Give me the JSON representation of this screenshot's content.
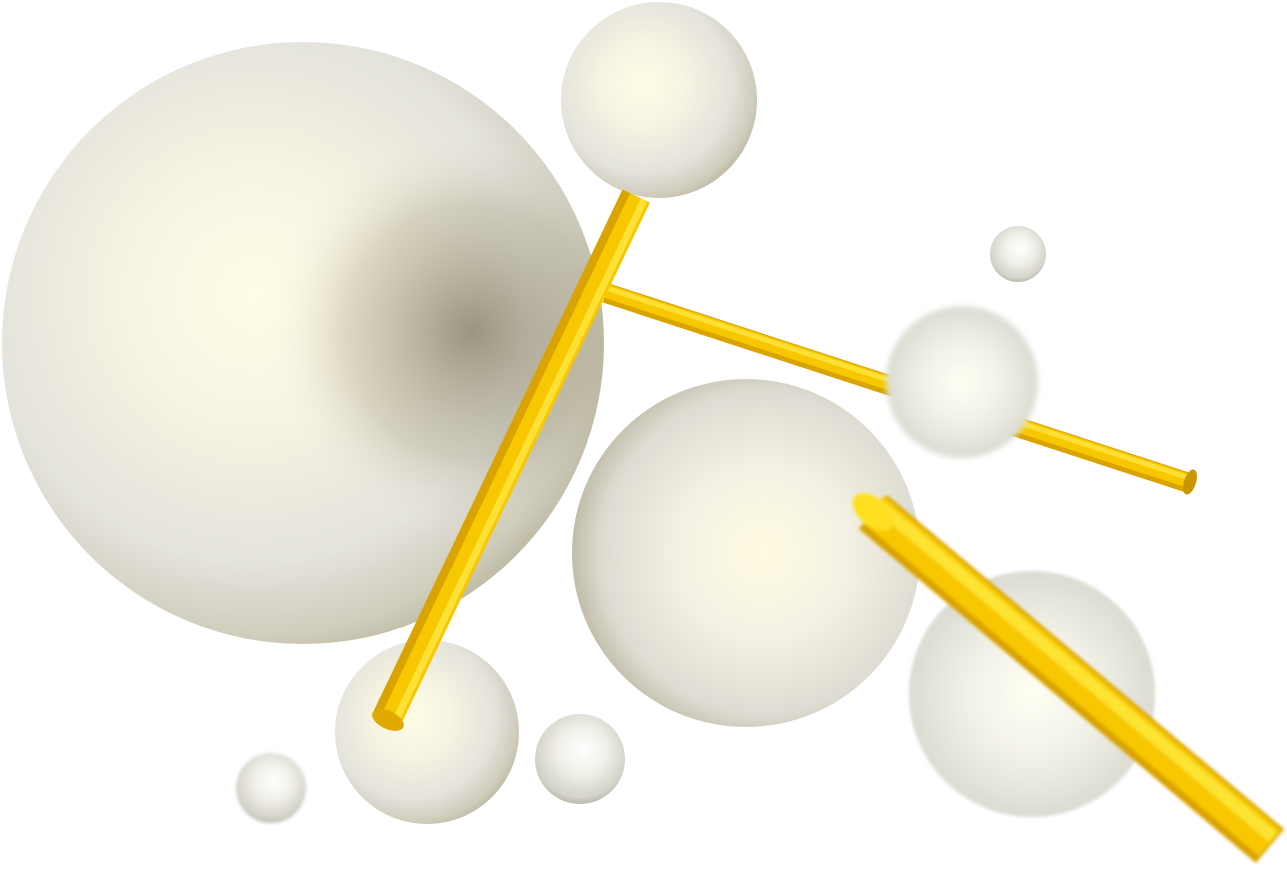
{
  "scene": {
    "background": "#ffffff",
    "sphere_color": "#efefe6",
    "sphere_highlight": "#fffbd8",
    "sphere_shadow": "#b8b29a",
    "rod_color": "#f5c400",
    "rod_highlight": "#ffe640",
    "rod_shadow": "#d9a600",
    "sphere_count": 9,
    "rod_count": 3
  }
}
